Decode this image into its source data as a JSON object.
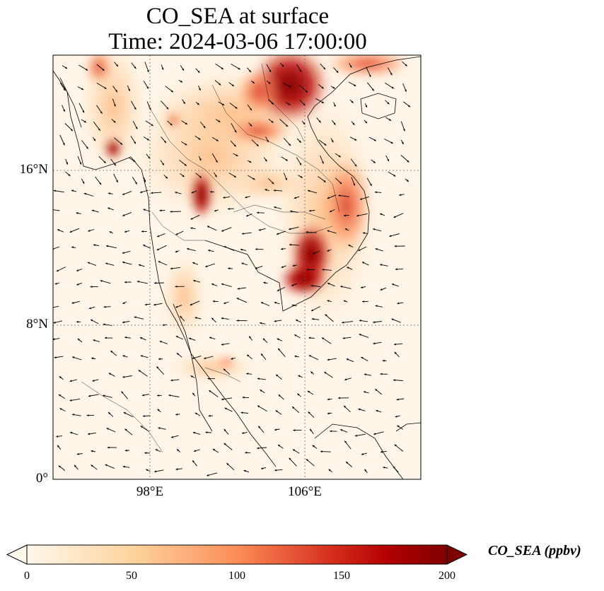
{
  "title": {
    "line1": "CO_SEA at surface",
    "line2": "Time: 2024-03-06 17:00:00"
  },
  "map": {
    "lon_range": [
      93,
      112
    ],
    "lat_range": [
      0,
      22
    ],
    "lat_ticks": [
      {
        "value": 0,
        "label": "0°"
      },
      {
        "value": 8,
        "label": "8°N"
      },
      {
        "value": 16,
        "label": "16°N"
      }
    ],
    "lon_ticks": [
      {
        "value": 98,
        "label": "98°E"
      },
      {
        "value": 106,
        "label": "106°E"
      }
    ],
    "gridlines": "dotted",
    "coastlines": true,
    "wind_vectors": true
  },
  "colorbar": {
    "label": "CO_SEA (ppbv)",
    "range": [
      0,
      200
    ],
    "ticks": [
      {
        "value": 0,
        "label": "0"
      },
      {
        "value": 50,
        "label": "50"
      },
      {
        "value": 100,
        "label": "100"
      },
      {
        "value": 150,
        "label": "150"
      },
      {
        "value": 200,
        "label": "200"
      }
    ],
    "colormap": "OrRd",
    "extend": "both"
  }
}
